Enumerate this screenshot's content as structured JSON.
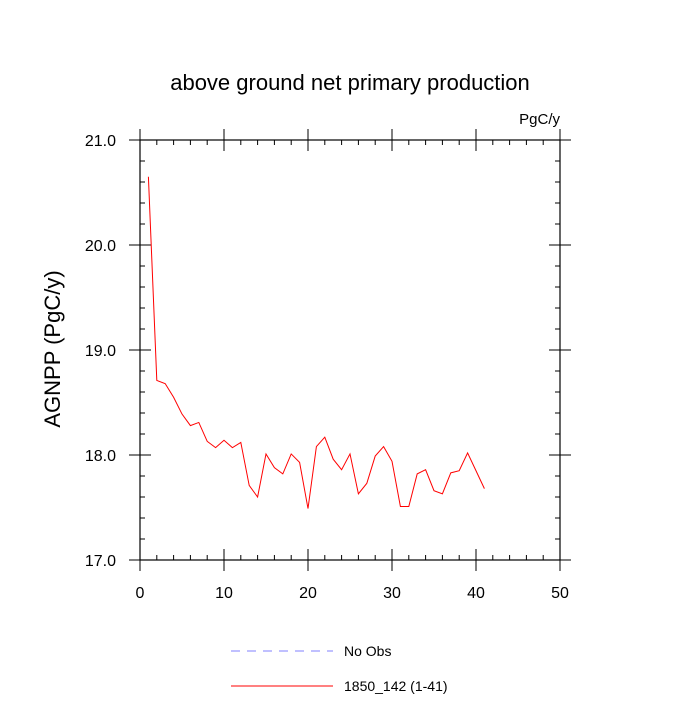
{
  "chart_data": {
    "type": "line",
    "title": "above ground net primary production",
    "units_label": "PgC/y",
    "xlabel": "",
    "ylabel": "AGNPP  (PgC/y)",
    "xlim": [
      0,
      50
    ],
    "ylim": [
      17.0,
      21.0
    ],
    "x_ticks": [
      0,
      10,
      20,
      30,
      40,
      50
    ],
    "x_tick_labels": [
      "0",
      "10",
      "20",
      "30",
      "40",
      "50"
    ],
    "y_ticks": [
      17.0,
      18.0,
      19.0,
      20.0,
      21.0
    ],
    "y_tick_labels": [
      "17.0",
      "18.0",
      "19.0",
      "20.0",
      "21.0"
    ],
    "x_minor_step": 2,
    "y_minor_step": 0.2,
    "grid": false,
    "legend_position": "bottom-center",
    "series": [
      {
        "name": "1850_142 (1-41)",
        "color": "#ff0000",
        "style": "solid",
        "x": [
          1,
          2,
          3,
          4,
          5,
          6,
          7,
          8,
          9,
          10,
          11,
          12,
          13,
          14,
          15,
          16,
          17,
          18,
          19,
          20,
          21,
          22,
          23,
          24,
          25,
          26,
          27,
          28,
          29,
          30,
          31,
          32,
          33,
          34,
          35,
          36,
          37,
          38,
          39,
          40,
          41
        ],
        "values": [
          20.65,
          18.71,
          18.68,
          18.55,
          18.39,
          18.28,
          18.31,
          18.13,
          18.07,
          18.14,
          18.07,
          18.12,
          17.71,
          17.6,
          18.01,
          17.88,
          17.82,
          18.01,
          17.93,
          17.49,
          18.08,
          18.17,
          17.96,
          17.86,
          18.01,
          17.63,
          17.73,
          17.99,
          18.08,
          17.94,
          17.51,
          17.51,
          17.82,
          17.86,
          17.66,
          17.63,
          17.83,
          17.85,
          18.02,
          17.85,
          17.68
        ]
      }
    ],
    "legend": [
      {
        "label": "No Obs",
        "color": "#8080ff",
        "style": "dashed"
      },
      {
        "label": "1850_142 (1-41)",
        "color": "#ff0000",
        "style": "solid"
      }
    ]
  }
}
